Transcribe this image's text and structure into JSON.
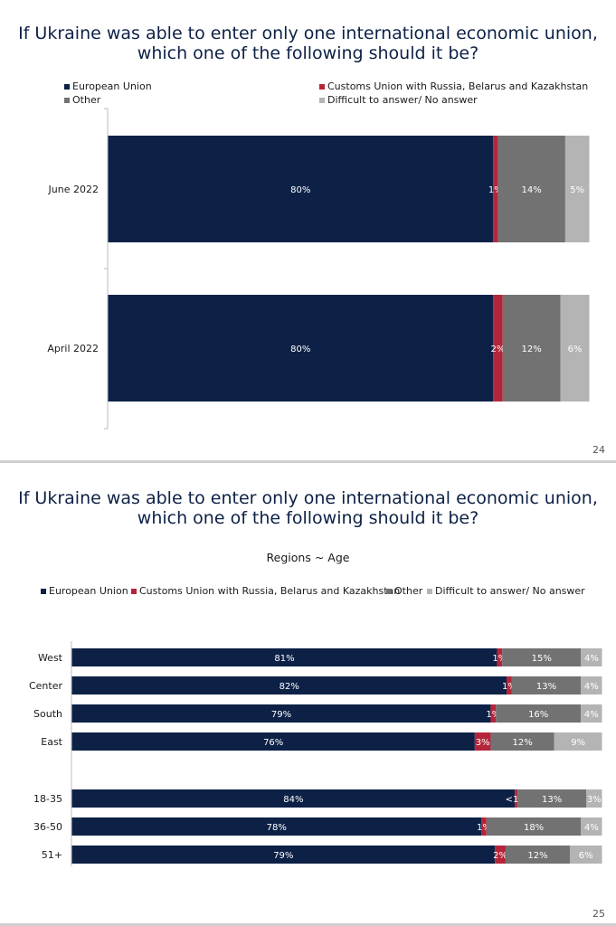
{
  "colors": {
    "eu": "#0d2147",
    "customs": "#b5253a",
    "other": "#727272",
    "difficult": "#b4b4b4",
    "title": "#0d2147"
  },
  "slide1": {
    "title_line1": "If Ukraine was able to enter only one international economic union,",
    "title_line2": "which one of the following should it be?",
    "page_number": "24",
    "legend": [
      "European Union",
      "Customs Union with Russia, Belarus and Kazakhstan",
      "Other",
      "Difficult to answer/ No answer"
    ]
  },
  "slide2": {
    "title_line1": "If Ukraine was able to enter only one international economic union,",
    "title_line2": "which one of the following should it be?",
    "subtitle": "Regions ~ Age",
    "page_number": "25",
    "legend": [
      "European Union",
      "Customs Union with Russia, Belarus and Kazakhstan",
      "Other",
      "Difficult to answer/ No answer"
    ]
  },
  "chart_data": [
    {
      "type": "bar",
      "orientation": "horizontal",
      "stacked": true,
      "title": "If Ukraine was able to enter only one international economic union, which one of the following should it be?",
      "categories": [
        "June 2022",
        "April 2022"
      ],
      "series": [
        {
          "name": "European Union",
          "values": [
            80,
            80
          ],
          "labels": [
            "80%",
            "80%"
          ]
        },
        {
          "name": "Customs Union with Russia, Belarus and Kazakhstan",
          "values": [
            1,
            2
          ],
          "labels": [
            "1%",
            "2%"
          ]
        },
        {
          "name": "Other",
          "values": [
            14,
            12
          ],
          "labels": [
            "14%",
            "12%"
          ]
        },
        {
          "name": "Difficult to answer/ No answer",
          "values": [
            5,
            6
          ],
          "labels": [
            "5%",
            "6%"
          ]
        }
      ],
      "legend_position": "top"
    },
    {
      "type": "bar",
      "orientation": "horizontal",
      "stacked": true,
      "title": "If Ukraine was able to enter only one international economic union, which one of the following should it be?",
      "subtitle": "Regions ~ Age",
      "categories": [
        "West",
        "Center",
        "South",
        "East",
        "18-35",
        "36-50",
        "51+"
      ],
      "groups": [
        [
          "West",
          "Center",
          "South",
          "East"
        ],
        [
          "18-35",
          "36-50",
          "51+"
        ]
      ],
      "series": [
        {
          "name": "European Union",
          "values": [
            81,
            82,
            79,
            76,
            84,
            78,
            79
          ],
          "labels": [
            "81%",
            "82%",
            "79%",
            "76%",
            "84%",
            "78%",
            "79%"
          ]
        },
        {
          "name": "Customs Union with Russia, Belarus and Kazakhstan",
          "values": [
            1,
            1,
            1,
            3,
            0.5,
            1,
            2
          ],
          "labels": [
            "1%",
            "1%",
            "1%",
            "3%",
            "<1%",
            "1%",
            "2%"
          ]
        },
        {
          "name": "Other",
          "values": [
            15,
            13,
            16,
            12,
            13,
            18,
            12
          ],
          "labels": [
            "15%",
            "13%",
            "16%",
            "12%",
            "13%",
            "18%",
            "12%"
          ]
        },
        {
          "name": "Difficult to answer/ No answer",
          "values": [
            4,
            4,
            4,
            9,
            3,
            4,
            6
          ],
          "labels": [
            "4%",
            "4%",
            "4%",
            "9%",
            "3%",
            "4%",
            "6%"
          ]
        }
      ],
      "legend_position": "top"
    }
  ]
}
